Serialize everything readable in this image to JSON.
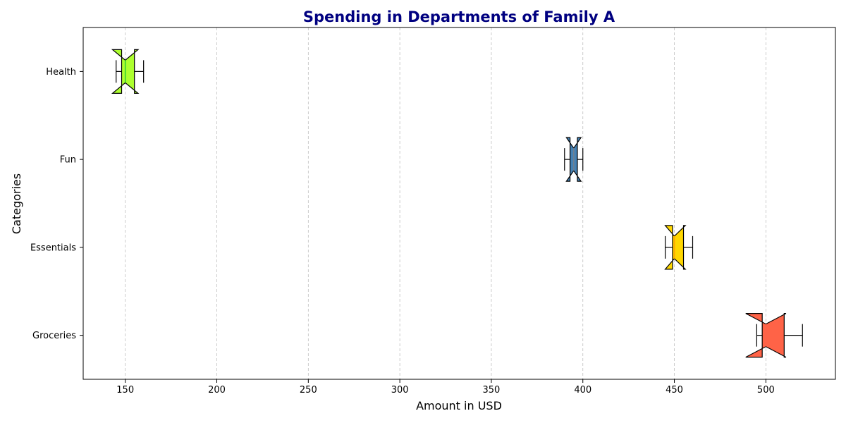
{
  "chart_data": {
    "type": "box",
    "orientation": "horizontal",
    "notched": true,
    "title": "Spending in Departments of Family A",
    "xlabel": "Amount in USD",
    "ylabel": "Categories",
    "xlim": [
      127,
      538
    ],
    "xticks": [
      150,
      200,
      250,
      300,
      350,
      400,
      450,
      500
    ],
    "grid": "x-dashed",
    "categories": [
      "Groceries",
      "Essentials",
      "Fun",
      "Health"
    ],
    "boxes": [
      {
        "category": "Groceries",
        "whislo": 495,
        "q1": 498,
        "median": 500,
        "q3": 510,
        "whishi": 520,
        "notch_lo": 489,
        "notch_hi": 511,
        "color": "#FF6347",
        "median_color": "#FF6347"
      },
      {
        "category": "Essentials",
        "whislo": 445,
        "q1": 449,
        "median": 450,
        "q3": 455,
        "whishi": 460,
        "notch_lo": 445,
        "notch_hi": 456,
        "color": "#FFD700",
        "median_color": "#FFA500"
      },
      {
        "category": "Fun",
        "whislo": 390,
        "q1": 393,
        "median": 395,
        "q3": 397,
        "whishi": 400,
        "notch_lo": 391,
        "notch_hi": 399,
        "color": "#4682B4",
        "median_color": "#708090"
      },
      {
        "category": "Health",
        "whislo": 145,
        "q1": 148,
        "median": 150,
        "q3": 155,
        "whishi": 160,
        "notch_lo": 143,
        "notch_hi": 157,
        "color": "#ADFF2F",
        "median_color": "#32CD32"
      }
    ]
  }
}
